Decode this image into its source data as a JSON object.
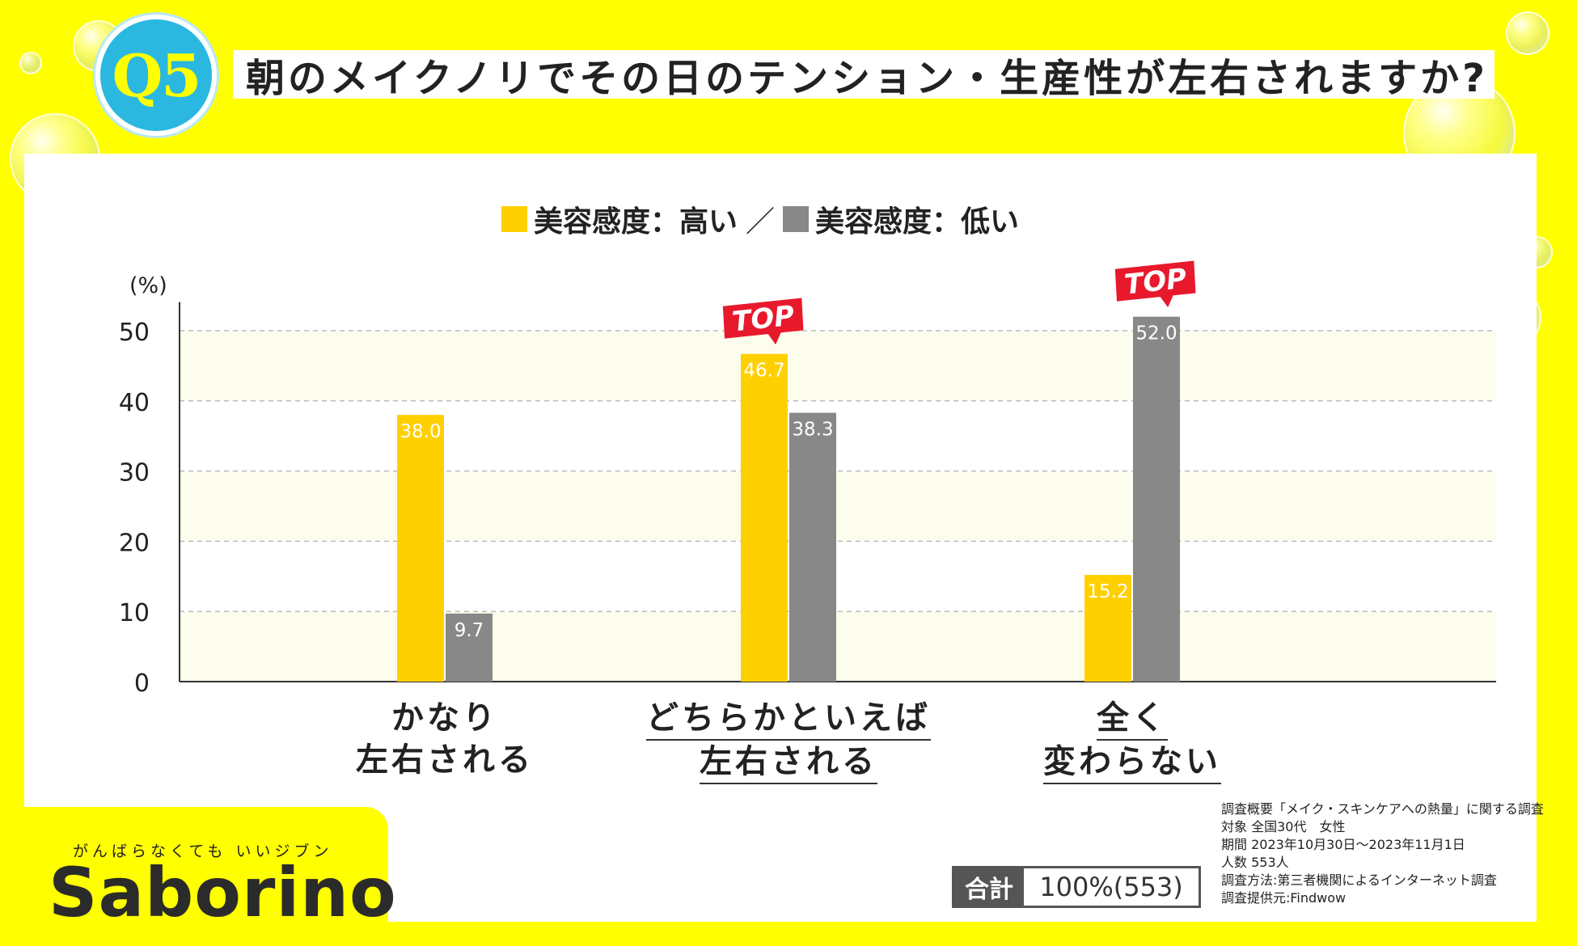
{
  "badge": "Q5",
  "title": "朝のメイクノリでその日のテンション・生産性が左右されますか?",
  "legend": {
    "high": "美容感度：高い",
    "separator": "／",
    "low": "美容感度：低い"
  },
  "colors": {
    "high": "#ffd000",
    "low": "#888888",
    "top_badge": "#e8192c",
    "background": "#ffff00"
  },
  "chart_data": {
    "type": "bar",
    "ylabel": "(%)",
    "ylim": [
      0,
      52
    ],
    "yticks": [
      0,
      10,
      20,
      30,
      40,
      50
    ],
    "grid": true,
    "categories": [
      {
        "line1": "かなり",
        "line2": "左右される",
        "underline": false
      },
      {
        "line1": "どちらかといえば",
        "line2": "左右される",
        "underline": true
      },
      {
        "line1": "全く",
        "line2": "変わらない",
        "underline": true
      }
    ],
    "series": [
      {
        "name": "美容感度：高い",
        "values": [
          38.0,
          46.7,
          15.2
        ]
      },
      {
        "name": "美容感度：低い",
        "values": [
          9.7,
          38.3,
          52.0
        ]
      }
    ],
    "top_badges": [
      {
        "category": 1,
        "series": 0,
        "text": "TOP"
      },
      {
        "category": 2,
        "series": 1,
        "text": "TOP"
      }
    ]
  },
  "logo": {
    "tagline": "がんばらなくても いいジブン",
    "name": "Saborino"
  },
  "total": {
    "label": "合計",
    "value": "100%(553)"
  },
  "survey": [
    "調査概要「メイク・スキンケアへの熱量」に関する調査",
    "対象 全国30代　女性",
    "期間 2023年10月30日～2023年11月1日",
    "人数 553人",
    "調査方法:第三者機関によるインターネット調査",
    "調査提供元:Findwow"
  ]
}
